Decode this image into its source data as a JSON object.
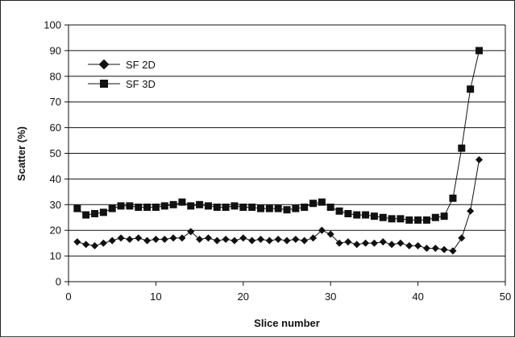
{
  "chart_data": {
    "type": "line",
    "xlabel": "Slice number",
    "ylabel": "Scatter (%)",
    "xlim": [
      0,
      50
    ],
    "ylim": [
      0,
      100
    ],
    "x_ticks": [
      0,
      10,
      20,
      30,
      40,
      50
    ],
    "y_ticks": [
      0,
      10,
      20,
      30,
      40,
      50,
      60,
      70,
      80,
      90,
      100
    ],
    "grid": "horizontal",
    "legend_position": "top-left",
    "x": [
      1,
      2,
      3,
      4,
      5,
      6,
      7,
      8,
      9,
      10,
      11,
      12,
      13,
      14,
      15,
      16,
      17,
      18,
      19,
      20,
      21,
      22,
      23,
      24,
      25,
      26,
      27,
      28,
      29,
      30,
      31,
      32,
      33,
      34,
      35,
      36,
      37,
      38,
      39,
      40,
      41,
      42,
      43,
      44,
      45,
      46,
      47
    ],
    "series": [
      {
        "name": "SF 2D",
        "marker": "diamond",
        "color": "#111111",
        "values": [
          15.5,
          14.5,
          14,
          15,
          16,
          17,
          16.5,
          17,
          16,
          16.5,
          16.5,
          17,
          17,
          19.5,
          16.5,
          17,
          16,
          16.5,
          16,
          17,
          16,
          16.5,
          16,
          16.5,
          16,
          16.5,
          16,
          17,
          20,
          18.5,
          15,
          15.5,
          14.5,
          15,
          15,
          15.5,
          14.5,
          15,
          14,
          14,
          13,
          13,
          12.5,
          12,
          17,
          27.5,
          47.5
        ]
      },
      {
        "name": "SF 3D",
        "marker": "square",
        "color": "#111111",
        "values": [
          28.5,
          26,
          26.5,
          27,
          28.5,
          29.5,
          29.5,
          29,
          29,
          29,
          29.5,
          30,
          31,
          29.5,
          30,
          29.5,
          29,
          29,
          29.5,
          29,
          29,
          28.5,
          28.5,
          28.5,
          28,
          28.5,
          29,
          30.5,
          31,
          29,
          27.5,
          26.5,
          26,
          26,
          25.5,
          25,
          24.5,
          24.5,
          24,
          24,
          24,
          25,
          25.5,
          32.5,
          52,
          75,
          90
        ]
      }
    ]
  }
}
